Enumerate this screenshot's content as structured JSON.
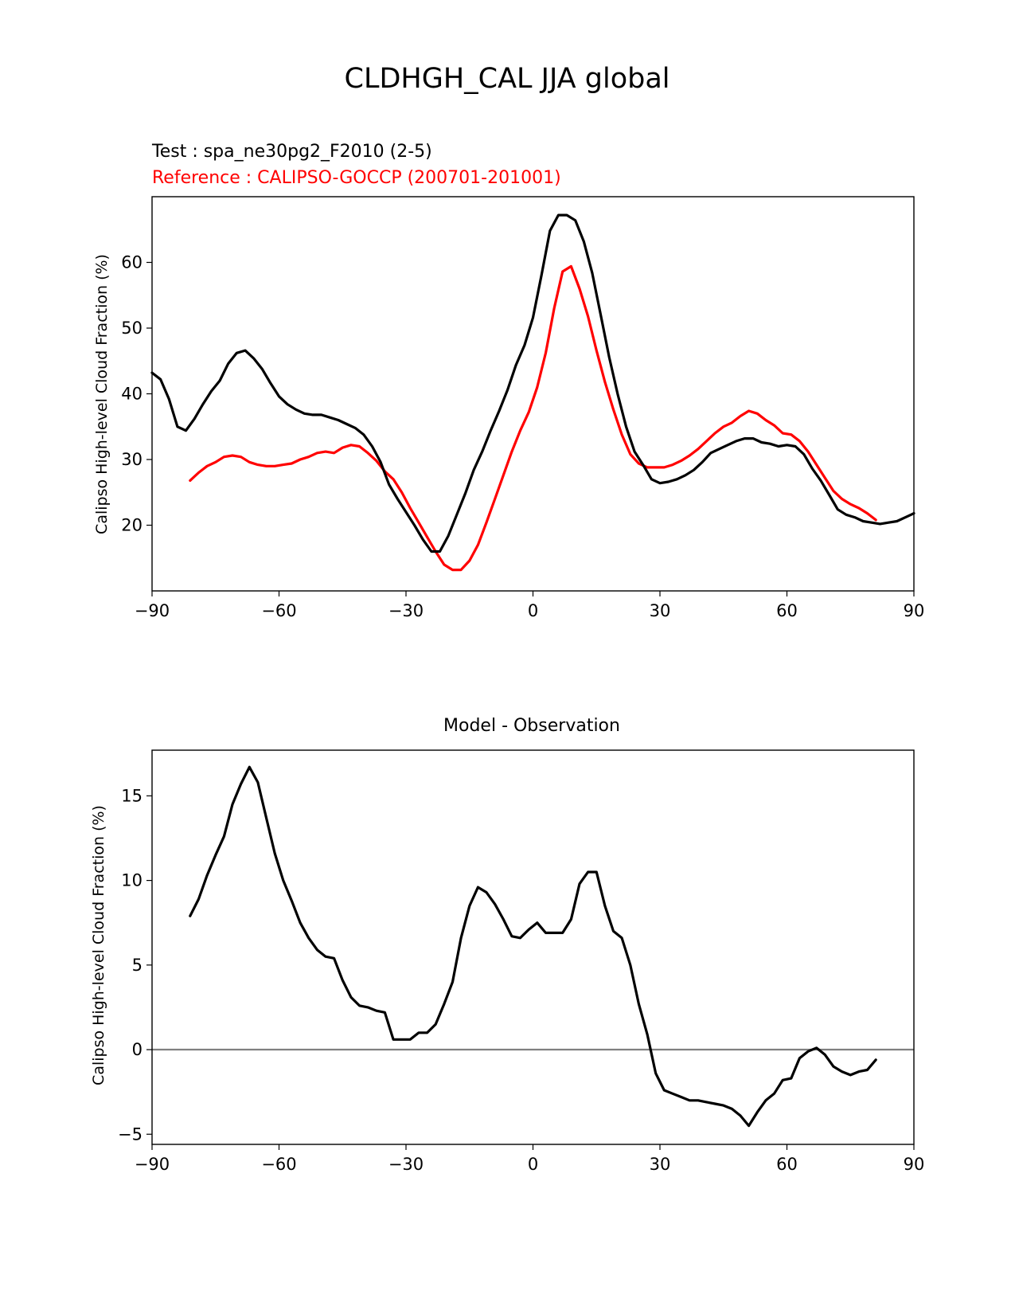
{
  "figure": {
    "suptitle": "CLDHGH_CAL JJA global"
  },
  "colors": {
    "test": "#000000",
    "reference": "#ff0000",
    "zero_line": "#808080"
  },
  "chart_data": [
    {
      "type": "line",
      "name": "zonal-mean",
      "title_test": "Test : spa_ne30pg2_F2010 (2-5)",
      "title_reference": "Reference : CALIPSO-GOCCP (200701-201001)",
      "xlabel": "",
      "ylabel": "Calipso High-level Cloud Fraction (%)",
      "xlim": [
        -90,
        90
      ],
      "ylim": [
        10,
        70
      ],
      "xticks": [
        -90,
        -60,
        -30,
        0,
        30,
        60,
        90
      ],
      "xtick_labels": [
        "−90",
        "−60",
        "−30",
        "0",
        "30",
        "60",
        "90"
      ],
      "yticks": [
        20,
        30,
        40,
        50,
        60
      ],
      "ytick_labels": [
        "20",
        "30",
        "40",
        "50",
        "60"
      ],
      "series": [
        {
          "name": "Test",
          "color": "#000000",
          "x": [
            -90,
            -88,
            -86,
            -84,
            -82,
            -80,
            -78,
            -76,
            -74,
            -72,
            -70,
            -68,
            -66,
            -64,
            -62,
            -60,
            -58,
            -56,
            -54,
            -52,
            -50,
            -48,
            -46,
            -44,
            -42,
            -40,
            -38,
            -36,
            -34,
            -32,
            -30,
            -28,
            -26,
            -24,
            -22,
            -20,
            -18,
            -16,
            -14,
            -12,
            -10,
            -8,
            -6,
            -4,
            -2,
            0,
            2,
            4,
            6,
            8,
            10,
            12,
            14,
            16,
            18,
            20,
            22,
            24,
            26,
            28,
            30,
            32,
            34,
            36,
            38,
            40,
            42,
            44,
            46,
            48,
            50,
            52,
            54,
            56,
            58,
            60,
            62,
            64,
            66,
            68,
            70,
            72,
            74,
            76,
            78,
            80,
            82,
            84,
            86,
            88,
            90
          ],
          "values": [
            43.2,
            42.2,
            39.2,
            35.0,
            34.4,
            36.2,
            38.4,
            40.4,
            42.0,
            44.6,
            46.2,
            46.6,
            45.4,
            43.8,
            41.6,
            39.6,
            38.4,
            37.6,
            37.0,
            36.8,
            36.8,
            36.4,
            36.0,
            35.4,
            34.8,
            33.8,
            32.0,
            29.6,
            26.2,
            24.0,
            22.0,
            20.0,
            17.8,
            16.0,
            16.0,
            18.4,
            21.6,
            24.8,
            28.4,
            31.2,
            34.4,
            37.4,
            40.6,
            44.4,
            47.4,
            51.6,
            58.0,
            64.8,
            67.2,
            67.2,
            66.4,
            63.2,
            58.4,
            52.0,
            45.6,
            40.0,
            35.0,
            31.2,
            29.2,
            27.0,
            26.4,
            26.6,
            27.0,
            27.6,
            28.4,
            29.6,
            31.0,
            31.6,
            32.2,
            32.8,
            33.2,
            33.2,
            32.6,
            32.4,
            32.0,
            32.2,
            32.0,
            30.8,
            28.6,
            26.8,
            24.6,
            22.4,
            21.6,
            21.2,
            20.6,
            20.4,
            20.2,
            20.4,
            20.6,
            21.2,
            21.8
          ]
        },
        {
          "name": "Reference",
          "color": "#ff0000",
          "x": [
            -81,
            -79,
            -77,
            -75,
            -73,
            -71,
            -69,
            -67,
            -65,
            -63,
            -61,
            -59,
            -57,
            -55,
            -53,
            -51,
            -49,
            -47,
            -45,
            -43,
            -41,
            -39,
            -37,
            -35,
            -33,
            -31,
            -29,
            -27,
            -25,
            -23,
            -21,
            -19,
            -17,
            -15,
            -13,
            -11,
            -9,
            -7,
            -5,
            -3,
            -1,
            1,
            3,
            5,
            7,
            9,
            11,
            13,
            15,
            17,
            19,
            21,
            23,
            25,
            27,
            29,
            31,
            33,
            35,
            37,
            39,
            41,
            43,
            45,
            47,
            49,
            51,
            53,
            55,
            57,
            59,
            61,
            63,
            65,
            67,
            69,
            71,
            73,
            75,
            77,
            79,
            81
          ],
          "values": [
            26.8,
            28.0,
            29.0,
            29.6,
            30.4,
            30.6,
            30.4,
            29.6,
            29.2,
            29.0,
            29.0,
            29.2,
            29.4,
            30.0,
            30.4,
            31.0,
            31.2,
            31.0,
            31.8,
            32.2,
            32.0,
            31.0,
            29.8,
            28.2,
            27.0,
            25.0,
            22.6,
            20.4,
            18.2,
            16.0,
            14.0,
            13.2,
            13.2,
            14.6,
            17.0,
            20.4,
            24.0,
            27.6,
            31.2,
            34.4,
            37.2,
            41.0,
            46.2,
            53.0,
            58.6,
            59.4,
            56.0,
            51.8,
            46.6,
            41.8,
            37.6,
            33.8,
            30.8,
            29.4,
            28.8,
            28.8,
            28.8,
            29.2,
            29.8,
            30.6,
            31.6,
            32.8,
            34.0,
            35.0,
            35.6,
            36.6,
            37.4,
            37.0,
            36.0,
            35.2,
            34.0,
            33.8,
            32.8,
            31.2,
            29.2,
            27.2,
            25.2,
            24.0,
            23.2,
            22.6,
            21.8,
            20.8
          ]
        }
      ]
    },
    {
      "type": "line",
      "name": "difference",
      "title": "Model - Observation",
      "xlabel": "",
      "ylabel": "Calipso High-level Cloud Fraction (%)",
      "xlim": [
        -90,
        90
      ],
      "ylim": [
        -5.6,
        17.7
      ],
      "xticks": [
        -90,
        -60,
        -30,
        0,
        30,
        60,
        90
      ],
      "xtick_labels": [
        "−90",
        "−60",
        "−30",
        "0",
        "30",
        "60",
        "90"
      ],
      "yticks": [
        -5,
        0,
        5,
        10,
        15
      ],
      "ytick_labels": [
        "−5",
        "0",
        "5",
        "10",
        "15"
      ],
      "zero_line": 0,
      "series": [
        {
          "name": "Model - Observation",
          "color": "#000000",
          "x": [
            -81,
            -79,
            -77,
            -75,
            -73,
            -71,
            -69,
            -67,
            -65,
            -63,
            -61,
            -59,
            -57,
            -55,
            -53,
            -51,
            -49,
            -47,
            -45,
            -43,
            -41,
            -39,
            -37,
            -35,
            -33,
            -31,
            -29,
            -27,
            -25,
            -23,
            -21,
            -19,
            -17,
            -15,
            -13,
            -11,
            -9,
            -7,
            -5,
            -3,
            -1,
            1,
            3,
            5,
            7,
            9,
            11,
            13,
            15,
            17,
            19,
            21,
            23,
            25,
            27,
            29,
            31,
            33,
            35,
            37,
            39,
            41,
            43,
            45,
            47,
            49,
            51,
            53,
            55,
            57,
            59,
            61,
            63,
            65,
            67,
            69,
            71,
            73,
            75,
            77,
            79,
            81
          ],
          "values": [
            7.9,
            8.9,
            10.3,
            11.5,
            12.6,
            14.5,
            15.7,
            16.7,
            15.8,
            13.7,
            11.6,
            10.0,
            8.8,
            7.5,
            6.6,
            5.9,
            5.5,
            5.4,
            4.1,
            3.1,
            2.6,
            2.5,
            2.3,
            2.2,
            0.6,
            0.6,
            0.6,
            1.0,
            1.0,
            1.5,
            2.7,
            4.0,
            6.6,
            8.5,
            9.6,
            9.3,
            8.6,
            7.7,
            6.7,
            6.6,
            7.1,
            7.5,
            6.9,
            6.9,
            6.9,
            7.7,
            9.8,
            10.5,
            10.5,
            8.5,
            7.0,
            6.6,
            5.0,
            2.7,
            0.9,
            -1.4,
            -2.4,
            -2.6,
            -2.8,
            -3.0,
            -3.0,
            -3.1,
            -3.2,
            -3.3,
            -3.5,
            -3.9,
            -4.5,
            -3.7,
            -3.0,
            -2.6,
            -1.8,
            -1.7,
            -0.5,
            -0.1,
            0.1,
            -0.3,
            -1.0,
            -1.3,
            -1.5,
            -1.3,
            -1.2,
            -0.6
          ]
        }
      ]
    }
  ]
}
